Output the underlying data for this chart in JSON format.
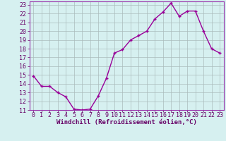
{
  "x": [
    0,
    1,
    2,
    3,
    4,
    5,
    6,
    7,
    8,
    9,
    10,
    11,
    12,
    13,
    14,
    15,
    16,
    17,
    18,
    19,
    20,
    21,
    22,
    23
  ],
  "y": [
    14.9,
    13.7,
    13.7,
    13.0,
    12.5,
    11.1,
    11.0,
    11.1,
    12.6,
    14.6,
    17.5,
    17.9,
    19.0,
    19.5,
    20.0,
    21.4,
    22.2,
    23.2,
    21.7,
    22.3,
    22.3,
    20.0,
    18.0,
    17.5
  ],
  "line_color": "#990099",
  "marker": "+",
  "marker_size": 3.5,
  "marker_lw": 1.0,
  "bg_color": "#d6f0f0",
  "grid_color": "#aabbbb",
  "axis_label_color": "#660066",
  "tick_color": "#660066",
  "border_color": "#9933aa",
  "xlabel": "Windchill (Refroidissement éolien,°C)",
  "xlim": [
    -0.5,
    23.5
  ],
  "ylim": [
    11,
    23.4
  ],
  "yticks": [
    11,
    12,
    13,
    14,
    15,
    16,
    17,
    18,
    19,
    20,
    21,
    22,
    23
  ],
  "xticks": [
    0,
    1,
    2,
    3,
    4,
    5,
    6,
    7,
    8,
    9,
    10,
    11,
    12,
    13,
    14,
    15,
    16,
    17,
    18,
    19,
    20,
    21,
    22,
    23
  ],
  "xlabel_fontsize": 6.5,
  "tick_fontsize": 6.0,
  "line_width": 1.0
}
